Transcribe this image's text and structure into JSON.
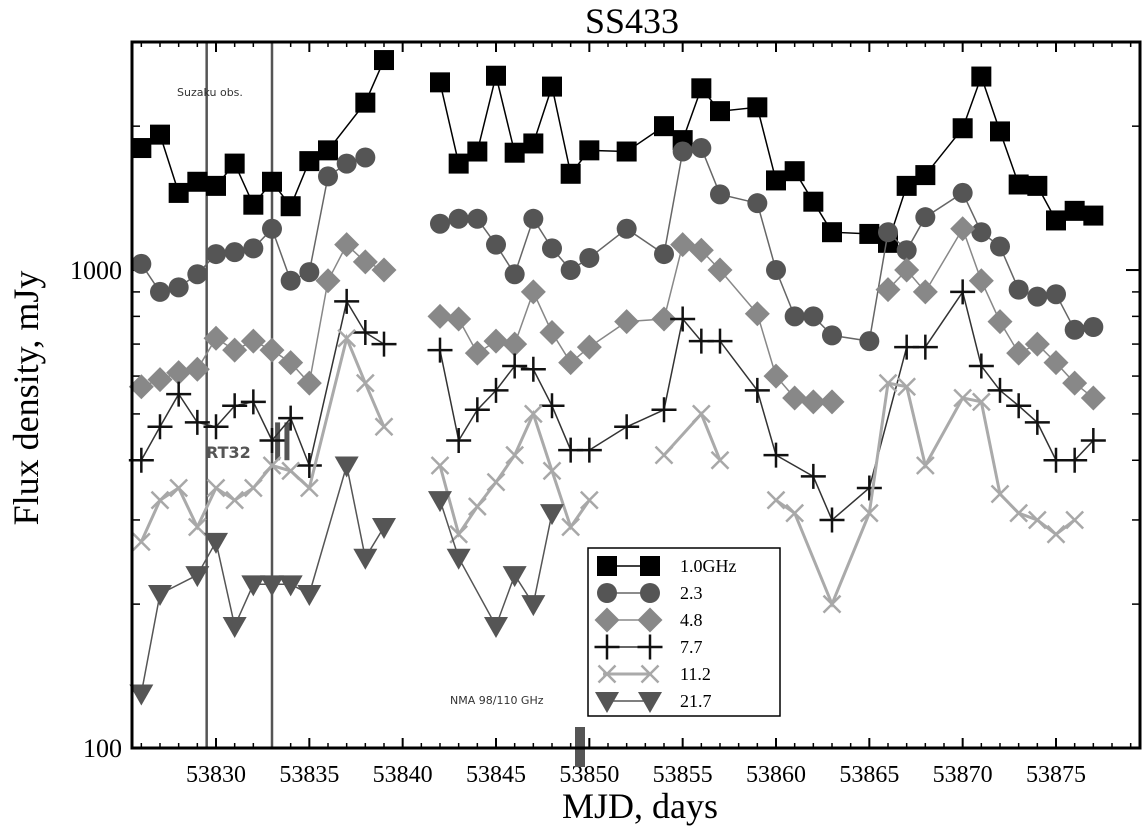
{
  "chart_data": {
    "type": "line",
    "title": "SS433",
    "xlabel": "MJD, days",
    "ylabel": "Flux density, mJy",
    "xlim": [
      53825.5,
      53879.5
    ],
    "ylim": [
      100,
      3000
    ],
    "yscale": "log",
    "x_ticks": [
      53830,
      53835,
      53840,
      53845,
      53850,
      53855,
      53860,
      53865,
      53870,
      53875
    ],
    "x_tick_labels": [
      "53830",
      "53835",
      "53840",
      "53845",
      "53850",
      "53855",
      "53860",
      "53865",
      "53870",
      "53875"
    ],
    "y_tick_labels": [
      {
        "value": 100,
        "label": "100"
      },
      {
        "value": 1000,
        "label": "1000"
      }
    ],
    "legend_position": "bottom-center",
    "annotations": {
      "suzaku": "Suzaku obs.",
      "rt32": "RT32",
      "nma": "NMA 98/110 GHz"
    },
    "suzaku_lines_x": [
      53829.5,
      53833
    ],
    "rt32_marks_x": [
      53833.3,
      53833.8
    ],
    "nma_mark_x": 53849.5,
    "series": [
      {
        "name": "1.0GHz",
        "marker": "square",
        "color": "#000000",
        "line": "#000000",
        "points": [
          [
            53826,
            1800
          ],
          [
            53827,
            1920
          ],
          [
            53828,
            1450
          ],
          [
            53829,
            1530
          ],
          [
            53830,
            1500
          ],
          [
            53831,
            1670
          ],
          [
            53832,
            1370
          ],
          [
            53833,
            1530
          ],
          [
            53834,
            1360
          ],
          [
            53835,
            1690
          ],
          [
            53836,
            1780
          ],
          [
            53838,
            2240
          ],
          [
            53839,
            2750
          ],
          [
            53842,
            2470
          ],
          [
            53843,
            1670
          ],
          [
            53844,
            1770
          ],
          [
            53845,
            2550
          ],
          [
            53846,
            1760
          ],
          [
            53847,
            1840
          ],
          [
            53848,
            2420
          ],
          [
            53849,
            1590
          ],
          [
            53850,
            1780
          ],
          [
            53852,
            1770
          ],
          [
            53854,
            2000
          ],
          [
            53855,
            1870
          ],
          [
            53856,
            2400
          ],
          [
            53857,
            2150
          ],
          [
            53859,
            2190
          ],
          [
            53860,
            1540
          ],
          [
            53861,
            1610
          ],
          [
            53862,
            1390
          ],
          [
            53863,
            1200
          ],
          [
            53865,
            1190
          ],
          [
            53866,
            1140
          ],
          [
            53867,
            1500
          ],
          [
            53868,
            1580
          ],
          [
            53870,
            1980
          ],
          [
            53871,
            2540
          ],
          [
            53872,
            1950
          ],
          [
            53873,
            1510
          ],
          [
            53874,
            1500
          ],
          [
            53875,
            1270
          ],
          [
            53876,
            1330
          ],
          [
            53877,
            1300
          ]
        ]
      },
      {
        "name": "2.3",
        "marker": "circle",
        "color": "#555555",
        "line": "#666666",
        "points": [
          [
            53826,
            1030
          ],
          [
            53827,
            900
          ],
          [
            53828,
            920
          ],
          [
            53829,
            980
          ],
          [
            53830,
            1080
          ],
          [
            53831,
            1090
          ],
          [
            53832,
            1110
          ],
          [
            53833,
            1220
          ],
          [
            53834,
            950
          ],
          [
            53835,
            990
          ],
          [
            53836,
            1570
          ],
          [
            53837,
            1670
          ],
          [
            53838,
            1720
          ],
          [
            53842,
            1250
          ],
          [
            53843,
            1280
          ],
          [
            53844,
            1280
          ],
          [
            53845,
            1130
          ],
          [
            53846,
            980
          ],
          [
            53847,
            1280
          ],
          [
            53848,
            1110
          ],
          [
            53849,
            1000
          ],
          [
            53850,
            1060
          ],
          [
            53852,
            1220
          ],
          [
            53854,
            1080
          ],
          [
            53855,
            1770
          ],
          [
            53856,
            1800
          ],
          [
            53857,
            1440
          ],
          [
            53859,
            1380
          ],
          [
            53860,
            1000
          ],
          [
            53861,
            800
          ],
          [
            53862,
            800
          ],
          [
            53863,
            730
          ],
          [
            53865,
            710
          ],
          [
            53866,
            1200
          ],
          [
            53867,
            1100
          ],
          [
            53868,
            1290
          ],
          [
            53870,
            1450
          ],
          [
            53871,
            1200
          ],
          [
            53872,
            1120
          ],
          [
            53873,
            910
          ],
          [
            53874,
            880
          ],
          [
            53875,
            890
          ],
          [
            53876,
            750
          ],
          [
            53877,
            760
          ]
        ]
      },
      {
        "name": "4.8",
        "marker": "diamond",
        "color": "#888888",
        "line": "#888888",
        "points": [
          [
            53826,
            570
          ],
          [
            53827,
            590
          ],
          [
            53828,
            610
          ],
          [
            53829,
            620
          ],
          [
            53830,
            720
          ],
          [
            53831,
            680
          ],
          [
            53832,
            710
          ],
          [
            53833,
            680
          ],
          [
            53834,
            640
          ],
          [
            53835,
            580
          ],
          [
            53836,
            950
          ],
          [
            53837,
            1130
          ],
          [
            53838,
            1040
          ],
          [
            53839,
            1000
          ],
          [
            53842,
            800
          ],
          [
            53843,
            790
          ],
          [
            53844,
            670
          ],
          [
            53845,
            710
          ],
          [
            53846,
            700
          ],
          [
            53847,
            900
          ],
          [
            53848,
            740
          ],
          [
            53849,
            640
          ],
          [
            53850,
            690
          ],
          [
            53852,
            780
          ],
          [
            53854,
            790
          ],
          [
            53855,
            1130
          ],
          [
            53856,
            1100
          ],
          [
            53857,
            1000
          ],
          [
            53859,
            810
          ],
          [
            53860,
            600
          ],
          [
            53861,
            540
          ],
          [
            53862,
            530
          ],
          [
            53863,
            530
          ],
          [
            53866,
            910
          ],
          [
            53867,
            1000
          ],
          [
            53868,
            900
          ],
          [
            53870,
            1220
          ],
          [
            53871,
            950
          ],
          [
            53872,
            780
          ],
          [
            53873,
            670
          ],
          [
            53874,
            700
          ],
          [
            53875,
            640
          ],
          [
            53876,
            580
          ],
          [
            53877,
            540
          ]
        ]
      },
      {
        "name": "7.7",
        "marker": "plus",
        "color": "#111111",
        "line": "#333333",
        "points": [
          [
            53826,
            400
          ],
          [
            53827,
            470
          ],
          [
            53828,
            550
          ],
          [
            53829,
            480
          ],
          [
            53830,
            470
          ],
          [
            53831,
            520
          ],
          [
            53832,
            530
          ],
          [
            53833,
            440
          ],
          [
            53834,
            490
          ],
          [
            53835,
            390
          ],
          [
            53837,
            860
          ],
          [
            53838,
            740
          ],
          [
            53839,
            700
          ],
          [
            53842,
            680
          ],
          [
            53843,
            440
          ],
          [
            53844,
            510
          ],
          [
            53845,
            560
          ],
          [
            53846,
            630
          ],
          [
            53847,
            620
          ],
          [
            53848,
            520
          ],
          [
            53849,
            420
          ],
          [
            53850,
            420
          ],
          [
            53852,
            470
          ],
          [
            53854,
            510
          ],
          [
            53855,
            790
          ],
          [
            53856,
            710
          ],
          [
            53857,
            710
          ],
          [
            53859,
            560
          ],
          [
            53860,
            410
          ],
          [
            53862,
            370
          ],
          [
            53863,
            300
          ],
          [
            53865,
            350
          ],
          [
            53867,
            690
          ],
          [
            53868,
            690
          ],
          [
            53870,
            900
          ],
          [
            53871,
            630
          ],
          [
            53872,
            560
          ],
          [
            53873,
            520
          ],
          [
            53874,
            480
          ],
          [
            53875,
            400
          ],
          [
            53876,
            400
          ],
          [
            53877,
            440
          ]
        ]
      },
      {
        "name": "11.2",
        "marker": "x",
        "color": "#a8a8a8",
        "line": "#aaaaaa",
        "points": [
          [
            53826,
            270
          ],
          [
            53827,
            330
          ],
          [
            53828,
            350
          ],
          [
            53829,
            290
          ],
          [
            53830,
            350
          ],
          [
            53831,
            330
          ],
          [
            53832,
            350
          ],
          [
            53833,
            390
          ],
          [
            53834,
            380
          ],
          [
            53835,
            350
          ],
          [
            53837,
            720
          ],
          [
            53838,
            580
          ],
          [
            53839,
            470
          ],
          [
            53842,
            390
          ],
          [
            53843,
            280
          ],
          [
            53844,
            320
          ],
          [
            53845,
            360
          ],
          [
            53846,
            410
          ],
          [
            53847,
            500
          ],
          [
            53848,
            380
          ],
          [
            53849,
            290
          ],
          [
            53850,
            330
          ],
          [
            53854,
            410
          ],
          [
            53856,
            500
          ],
          [
            53857,
            400
          ],
          [
            53860,
            330
          ],
          [
            53861,
            310
          ],
          [
            53863,
            200
          ],
          [
            53865,
            310
          ],
          [
            53866,
            580
          ],
          [
            53867,
            570
          ],
          [
            53868,
            390
          ],
          [
            53870,
            540
          ],
          [
            53871,
            530
          ],
          [
            53872,
            340
          ],
          [
            53873,
            310
          ],
          [
            53874,
            300
          ],
          [
            53875,
            280
          ],
          [
            53876,
            300
          ]
        ]
      },
      {
        "name": "21.7",
        "marker": "triangle-down",
        "color": "#555555",
        "line": "#555555",
        "points": [
          [
            53826,
            130
          ],
          [
            53827,
            210
          ],
          [
            53829,
            230
          ],
          [
            53830,
            270
          ],
          [
            53831,
            180
          ],
          [
            53832,
            220
          ],
          [
            53833,
            220
          ],
          [
            53834,
            220
          ],
          [
            53835,
            210
          ],
          [
            53837,
            390
          ],
          [
            53838,
            250
          ],
          [
            53839,
            290
          ],
          [
            53842,
            330
          ],
          [
            53843,
            250
          ],
          [
            53845,
            180
          ],
          [
            53846,
            230
          ],
          [
            53847,
            200
          ],
          [
            53848,
            310
          ]
        ]
      }
    ]
  },
  "legend_labels": [
    "1.0GHz",
    "2.3",
    "4.8",
    "7.7",
    "11.2",
    "21.7"
  ]
}
